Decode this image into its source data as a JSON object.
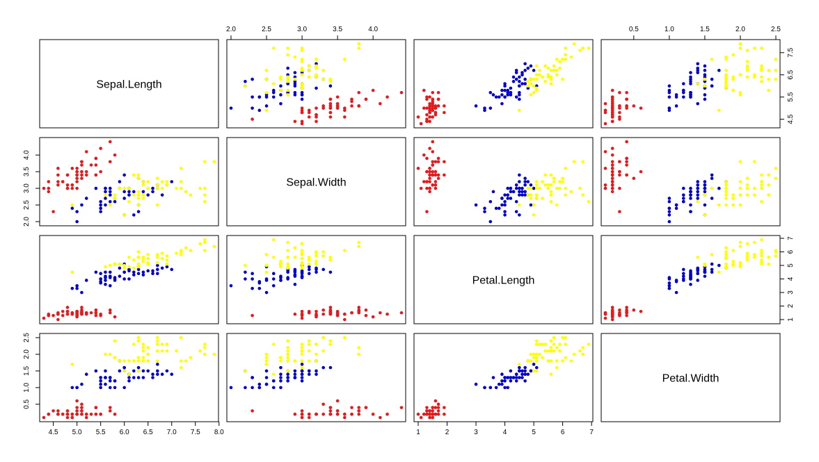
{
  "chart_data": {
    "type": "scatter",
    "title": "",
    "variables": [
      "Sepal.Length",
      "Sepal.Width",
      "Petal.Length",
      "Petal.Width"
    ],
    "ranges": {
      "Sepal.Length": [
        4.3,
        7.9
      ],
      "Sepal.Width": [
        2.0,
        4.4
      ],
      "Petal.Length": [
        1.0,
        6.9
      ],
      "Petal.Width": [
        0.1,
        2.5
      ]
    },
    "ticks": {
      "Sepal.Length": [
        4.5,
        5.0,
        5.5,
        6.0,
        6.5,
        7.0,
        7.5,
        8.0
      ],
      "Sepal.Width": [
        2.0,
        2.5,
        3.0,
        3.5,
        4.0
      ],
      "Petal.Length": [
        1,
        2,
        3,
        4,
        5,
        6,
        7
      ],
      "Petal.Width": [
        0.5,
        1.0,
        1.5,
        2.0,
        2.5
      ]
    },
    "tick_labels": {
      "Sepal.Length": {
        "bottom": [
          "4.5",
          "5.0",
          "5.5",
          "6.0",
          "6.5",
          "7.0",
          "7.5",
          "8.0"
        ],
        "right": [
          "4.5",
          "5.5",
          "6.5",
          "7.5"
        ]
      },
      "Sepal.Width": {
        "top": [
          "2.0",
          "2.5",
          "3.0",
          "3.5",
          "4.0"
        ],
        "left": [
          "2.0",
          "2.5",
          "3.0",
          "3.5",
          "4.0"
        ]
      },
      "Petal.Length": {
        "bottom": [
          "1",
          "2",
          "3",
          "4",
          "5",
          "6",
          "7"
        ],
        "right": [
          "1",
          "2",
          "3",
          "4",
          "5",
          "6",
          "7"
        ]
      },
      "Petal.Width": {
        "top": [
          "0.5",
          "1.0",
          "1.5",
          "2.0",
          "2.5"
        ],
        "left": [
          "0.5",
          "1.0",
          "1.5",
          "2.0",
          "2.5"
        ]
      }
    },
    "grid": false,
    "point_style": "filled circle",
    "series": [
      {
        "color": "#e41a1c",
        "points": [
          [
            5.1,
            3.5,
            1.4,
            0.2
          ],
          [
            4.9,
            3.0,
            1.4,
            0.2
          ],
          [
            4.7,
            3.2,
            1.3,
            0.2
          ],
          [
            4.6,
            3.1,
            1.5,
            0.2
          ],
          [
            5.0,
            3.6,
            1.4,
            0.2
          ],
          [
            5.4,
            3.9,
            1.7,
            0.4
          ],
          [
            4.6,
            3.4,
            1.4,
            0.3
          ],
          [
            5.0,
            3.4,
            1.5,
            0.2
          ],
          [
            4.4,
            2.9,
            1.4,
            0.2
          ],
          [
            4.9,
            3.1,
            1.5,
            0.1
          ],
          [
            5.4,
            3.7,
            1.5,
            0.2
          ],
          [
            4.8,
            3.4,
            1.6,
            0.2
          ],
          [
            4.8,
            3.0,
            1.4,
            0.1
          ],
          [
            4.3,
            3.0,
            1.1,
            0.1
          ],
          [
            5.8,
            4.0,
            1.2,
            0.2
          ],
          [
            5.7,
            4.4,
            1.5,
            0.4
          ],
          [
            5.4,
            3.9,
            1.3,
            0.4
          ],
          [
            5.1,
            3.5,
            1.4,
            0.3
          ],
          [
            5.7,
            3.8,
            1.7,
            0.3
          ],
          [
            5.1,
            3.8,
            1.5,
            0.3
          ],
          [
            5.4,
            3.4,
            1.7,
            0.2
          ],
          [
            5.1,
            3.7,
            1.5,
            0.4
          ],
          [
            4.6,
            3.6,
            1.0,
            0.2
          ],
          [
            5.1,
            3.3,
            1.7,
            0.5
          ],
          [
            4.8,
            3.4,
            1.9,
            0.2
          ],
          [
            5.0,
            3.0,
            1.6,
            0.2
          ],
          [
            5.0,
            3.4,
            1.6,
            0.4
          ],
          [
            5.2,
            3.5,
            1.5,
            0.2
          ],
          [
            5.2,
            3.4,
            1.4,
            0.2
          ],
          [
            4.7,
            3.2,
            1.6,
            0.2
          ],
          [
            4.8,
            3.1,
            1.6,
            0.2
          ],
          [
            5.4,
            3.4,
            1.5,
            0.4
          ],
          [
            5.2,
            4.1,
            1.5,
            0.1
          ],
          [
            5.5,
            4.2,
            1.4,
            0.2
          ],
          [
            4.9,
            3.1,
            1.5,
            0.2
          ],
          [
            5.0,
            3.2,
            1.2,
            0.2
          ],
          [
            5.5,
            3.5,
            1.3,
            0.2
          ],
          [
            4.9,
            3.6,
            1.4,
            0.1
          ],
          [
            4.4,
            3.0,
            1.3,
            0.2
          ],
          [
            5.1,
            3.4,
            1.5,
            0.2
          ],
          [
            5.0,
            3.5,
            1.3,
            0.3
          ],
          [
            4.5,
            2.3,
            1.3,
            0.3
          ],
          [
            4.4,
            3.2,
            1.3,
            0.2
          ],
          [
            5.0,
            3.5,
            1.6,
            0.6
          ],
          [
            5.1,
            3.8,
            1.9,
            0.4
          ],
          [
            4.8,
            3.0,
            1.4,
            0.3
          ],
          [
            5.1,
            3.8,
            1.6,
            0.2
          ],
          [
            4.6,
            3.2,
            1.4,
            0.2
          ],
          [
            5.3,
            3.7,
            1.5,
            0.2
          ],
          [
            5.0,
            3.3,
            1.4,
            0.2
          ]
        ]
      },
      {
        "color": "#0000cd",
        "points": [
          [
            7.0,
            3.2,
            4.7,
            1.4
          ],
          [
            6.4,
            3.2,
            4.5,
            1.5
          ],
          [
            6.9,
            3.1,
            4.9,
            1.5
          ],
          [
            5.5,
            2.3,
            4.0,
            1.3
          ],
          [
            6.5,
            2.8,
            4.6,
            1.5
          ],
          [
            5.7,
            2.8,
            4.5,
            1.3
          ],
          [
            6.3,
            3.3,
            4.7,
            1.6
          ],
          [
            4.9,
            2.4,
            3.3,
            1.0
          ],
          [
            6.6,
            2.9,
            4.6,
            1.3
          ],
          [
            5.2,
            2.7,
            3.9,
            1.4
          ],
          [
            5.0,
            2.0,
            3.5,
            1.0
          ],
          [
            5.9,
            3.0,
            4.2,
            1.5
          ],
          [
            6.0,
            2.2,
            4.0,
            1.0
          ],
          [
            6.1,
            2.9,
            4.7,
            1.4
          ],
          [
            5.6,
            2.9,
            3.6,
            1.3
          ],
          [
            6.7,
            3.1,
            4.4,
            1.4
          ],
          [
            5.6,
            3.0,
            4.5,
            1.5
          ],
          [
            5.8,
            2.7,
            4.1,
            1.0
          ],
          [
            6.2,
            2.2,
            4.5,
            1.5
          ],
          [
            5.6,
            2.5,
            3.9,
            1.1
          ],
          [
            5.9,
            3.2,
            4.8,
            1.8
          ],
          [
            6.1,
            2.8,
            4.0,
            1.3
          ],
          [
            6.3,
            2.5,
            4.9,
            1.5
          ],
          [
            6.1,
            2.8,
            4.7,
            1.2
          ],
          [
            6.4,
            2.9,
            4.3,
            1.3
          ],
          [
            6.6,
            3.0,
            4.4,
            1.4
          ],
          [
            6.8,
            2.8,
            4.8,
            1.4
          ],
          [
            6.7,
            3.0,
            5.0,
            1.7
          ],
          [
            6.0,
            2.9,
            4.5,
            1.5
          ],
          [
            5.7,
            2.6,
            3.5,
            1.0
          ],
          [
            5.5,
            2.4,
            3.8,
            1.1
          ],
          [
            5.5,
            2.4,
            3.7,
            1.0
          ],
          [
            5.8,
            2.7,
            3.9,
            1.2
          ],
          [
            6.0,
            2.7,
            5.1,
            1.6
          ],
          [
            5.4,
            3.0,
            4.5,
            1.5
          ],
          [
            6.0,
            3.4,
            4.5,
            1.6
          ],
          [
            6.7,
            3.1,
            4.7,
            1.5
          ],
          [
            6.3,
            2.3,
            4.4,
            1.3
          ],
          [
            5.6,
            3.0,
            4.1,
            1.3
          ],
          [
            5.5,
            2.5,
            4.0,
            1.3
          ],
          [
            5.5,
            2.6,
            4.4,
            1.2
          ],
          [
            6.1,
            3.0,
            4.6,
            1.4
          ],
          [
            5.8,
            2.6,
            4.0,
            1.2
          ],
          [
            5.0,
            2.3,
            3.3,
            1.0
          ],
          [
            5.6,
            2.7,
            4.2,
            1.3
          ],
          [
            5.7,
            3.0,
            4.2,
            1.2
          ],
          [
            5.7,
            2.9,
            4.2,
            1.3
          ],
          [
            6.2,
            2.9,
            4.3,
            1.3
          ],
          [
            5.1,
            2.5,
            3.0,
            1.1
          ],
          [
            5.7,
            2.8,
            4.1,
            1.3
          ]
        ]
      },
      {
        "color": "#ffff00",
        "points": [
          [
            6.3,
            3.3,
            6.0,
            2.5
          ],
          [
            5.8,
            2.7,
            5.1,
            1.9
          ],
          [
            7.1,
            3.0,
            5.9,
            2.1
          ],
          [
            6.3,
            2.9,
            5.6,
            1.8
          ],
          [
            6.5,
            3.0,
            5.8,
            2.2
          ],
          [
            7.6,
            3.0,
            6.6,
            2.1
          ],
          [
            4.9,
            2.5,
            4.5,
            1.7
          ],
          [
            7.3,
            2.9,
            6.3,
            1.8
          ],
          [
            6.7,
            2.5,
            5.8,
            1.8
          ],
          [
            7.2,
            3.6,
            6.1,
            2.5
          ],
          [
            6.5,
            3.2,
            5.1,
            2.0
          ],
          [
            6.4,
            2.7,
            5.3,
            1.9
          ],
          [
            6.8,
            3.0,
            5.5,
            2.1
          ],
          [
            5.7,
            2.5,
            5.0,
            2.0
          ],
          [
            5.8,
            2.8,
            5.1,
            2.4
          ],
          [
            6.4,
            3.2,
            5.3,
            2.3
          ],
          [
            6.5,
            3.0,
            5.5,
            1.8
          ],
          [
            7.7,
            3.8,
            6.7,
            2.2
          ],
          [
            7.7,
            2.6,
            6.9,
            2.3
          ],
          [
            6.0,
            2.2,
            5.0,
            1.5
          ],
          [
            6.9,
            3.2,
            5.7,
            2.3
          ],
          [
            5.6,
            2.8,
            4.9,
            2.0
          ],
          [
            7.7,
            2.8,
            6.7,
            2.0
          ],
          [
            6.3,
            2.7,
            4.9,
            1.8
          ],
          [
            6.7,
            3.3,
            5.7,
            2.1
          ],
          [
            7.2,
            3.2,
            6.0,
            1.8
          ],
          [
            6.2,
            2.8,
            4.8,
            1.8
          ],
          [
            6.1,
            3.0,
            4.9,
            1.8
          ],
          [
            6.4,
            2.8,
            5.6,
            2.1
          ],
          [
            7.2,
            3.0,
            5.8,
            1.6
          ],
          [
            7.4,
            2.8,
            6.1,
            1.9
          ],
          [
            7.9,
            3.8,
            6.4,
            2.0
          ],
          [
            6.4,
            2.8,
            5.6,
            2.2
          ],
          [
            6.3,
            2.8,
            5.1,
            1.5
          ],
          [
            6.1,
            2.6,
            5.6,
            1.4
          ],
          [
            7.7,
            3.0,
            6.1,
            2.3
          ],
          [
            6.3,
            3.4,
            5.6,
            2.4
          ],
          [
            6.4,
            3.1,
            5.5,
            1.8
          ],
          [
            6.0,
            3.0,
            4.8,
            1.8
          ],
          [
            6.9,
            3.1,
            5.4,
            2.1
          ],
          [
            6.7,
            3.1,
            5.6,
            2.4
          ],
          [
            6.9,
            3.1,
            5.1,
            2.3
          ],
          [
            5.8,
            2.7,
            5.1,
            1.9
          ],
          [
            6.8,
            3.2,
            5.9,
            2.3
          ],
          [
            6.7,
            3.3,
            5.7,
            2.5
          ],
          [
            6.7,
            3.0,
            5.2,
            2.3
          ],
          [
            6.3,
            2.5,
            5.0,
            1.9
          ],
          [
            6.5,
            3.0,
            5.2,
            2.0
          ],
          [
            6.2,
            3.4,
            5.4,
            2.3
          ],
          [
            5.9,
            3.0,
            5.1,
            1.8
          ]
        ]
      }
    ]
  }
}
